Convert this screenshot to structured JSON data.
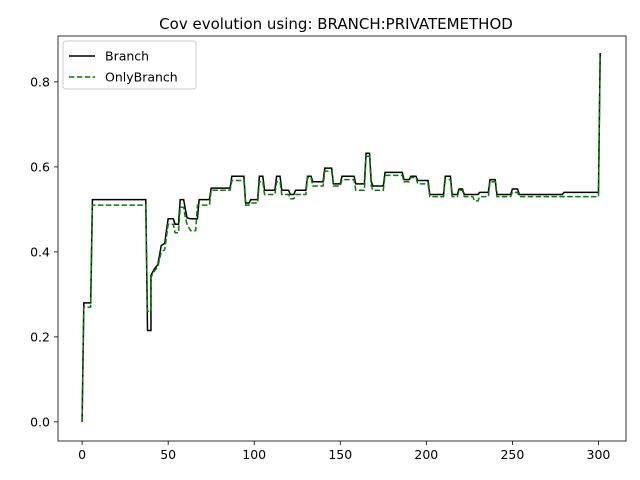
{
  "chart_data": {
    "type": "line",
    "title": "Cov evolution using: BRANCH:PRIVATEMETHOD",
    "xlabel": "",
    "ylabel": "",
    "xlim": [
      -14,
      316
    ],
    "ylim": [
      -0.045,
      0.908
    ],
    "xticks": [
      0,
      50,
      100,
      150,
      200,
      250,
      300
    ],
    "yticks": [
      0.0,
      0.2,
      0.4,
      0.6,
      0.8
    ],
    "ytick_labels": [
      "0.0",
      "0.2",
      "0.4",
      "0.6",
      "0.8"
    ],
    "grid": false,
    "legend_position": "top-left",
    "series": [
      {
        "name": "Branch",
        "color": "#000000",
        "style": "solid",
        "points": [
          [
            0,
            0.0
          ],
          [
            1,
            0.28
          ],
          [
            5,
            0.28
          ],
          [
            6,
            0.523
          ],
          [
            37,
            0.523
          ],
          [
            38,
            0.215
          ],
          [
            40,
            0.215
          ],
          [
            40,
            0.345
          ],
          [
            42,
            0.36
          ],
          [
            44,
            0.37
          ],
          [
            46,
            0.415
          ],
          [
            48,
            0.42
          ],
          [
            49,
            0.45
          ],
          [
            50,
            0.478
          ],
          [
            53,
            0.478
          ],
          [
            54,
            0.465
          ],
          [
            56,
            0.465
          ],
          [
            57,
            0.523
          ],
          [
            59,
            0.523
          ],
          [
            60,
            0.5
          ],
          [
            61,
            0.48
          ],
          [
            63,
            0.478
          ],
          [
            67,
            0.478
          ],
          [
            68,
            0.523
          ],
          [
            74,
            0.523
          ],
          [
            75,
            0.55
          ],
          [
            86,
            0.55
          ],
          [
            87,
            0.578
          ],
          [
            94,
            0.578
          ],
          [
            95,
            0.515
          ],
          [
            97,
            0.515
          ],
          [
            98,
            0.523
          ],
          [
            102,
            0.523
          ],
          [
            103,
            0.578
          ],
          [
            105,
            0.578
          ],
          [
            106,
            0.545
          ],
          [
            112,
            0.545
          ],
          [
            113,
            0.578
          ],
          [
            115,
            0.578
          ],
          [
            116,
            0.545
          ],
          [
            120,
            0.545
          ],
          [
            121,
            0.535
          ],
          [
            123,
            0.535
          ],
          [
            124,
            0.545
          ],
          [
            130,
            0.545
          ],
          [
            131,
            0.578
          ],
          [
            133,
            0.578
          ],
          [
            134,
            0.565
          ],
          [
            140,
            0.565
          ],
          [
            141,
            0.597
          ],
          [
            145,
            0.597
          ],
          [
            146,
            0.56
          ],
          [
            150,
            0.56
          ],
          [
            151,
            0.578
          ],
          [
            158,
            0.578
          ],
          [
            159,
            0.56
          ],
          [
            164,
            0.56
          ],
          [
            165,
            0.632
          ],
          [
            167,
            0.632
          ],
          [
            168,
            0.565
          ],
          [
            169,
            0.555
          ],
          [
            175,
            0.555
          ],
          [
            176,
            0.587
          ],
          [
            186,
            0.587
          ],
          [
            187,
            0.57
          ],
          [
            190,
            0.57
          ],
          [
            191,
            0.578
          ],
          [
            194,
            0.578
          ],
          [
            195,
            0.568
          ],
          [
            201,
            0.568
          ],
          [
            202,
            0.535
          ],
          [
            210,
            0.535
          ],
          [
            211,
            0.578
          ],
          [
            214,
            0.578
          ],
          [
            215,
            0.535
          ],
          [
            218,
            0.535
          ],
          [
            219,
            0.548
          ],
          [
            221,
            0.548
          ],
          [
            222,
            0.535
          ],
          [
            230,
            0.535
          ],
          [
            231,
            0.54
          ],
          [
            236,
            0.54
          ],
          [
            237,
            0.57
          ],
          [
            240,
            0.57
          ],
          [
            241,
            0.535
          ],
          [
            249,
            0.535
          ],
          [
            250,
            0.548
          ],
          [
            253,
            0.548
          ],
          [
            254,
            0.535
          ],
          [
            279,
            0.535
          ],
          [
            280,
            0.54
          ],
          [
            300,
            0.54
          ],
          [
            301,
            0.868
          ]
        ]
      },
      {
        "name": "OnlyBranch",
        "color": "#008000",
        "style": "dashed",
        "points": [
          [
            0,
            0.0
          ],
          [
            1,
            0.27
          ],
          [
            5,
            0.27
          ],
          [
            6,
            0.51
          ],
          [
            37,
            0.51
          ],
          [
            38,
            0.26
          ],
          [
            40,
            0.26
          ],
          [
            40,
            0.34
          ],
          [
            42,
            0.355
          ],
          [
            44,
            0.365
          ],
          [
            46,
            0.4
          ],
          [
            48,
            0.405
          ],
          [
            49,
            0.435
          ],
          [
            50,
            0.465
          ],
          [
            53,
            0.465
          ],
          [
            54,
            0.445
          ],
          [
            56,
            0.445
          ],
          [
            57,
            0.505
          ],
          [
            59,
            0.505
          ],
          [
            60,
            0.48
          ],
          [
            61,
            0.465
          ],
          [
            63,
            0.45
          ],
          [
            66,
            0.45
          ],
          [
            67,
            0.51
          ],
          [
            74,
            0.51
          ],
          [
            75,
            0.545
          ],
          [
            86,
            0.545
          ],
          [
            87,
            0.568
          ],
          [
            94,
            0.568
          ],
          [
            95,
            0.51
          ],
          [
            97,
            0.51
          ],
          [
            98,
            0.515
          ],
          [
            102,
            0.515
          ],
          [
            103,
            0.565
          ],
          [
            105,
            0.565
          ],
          [
            106,
            0.535
          ],
          [
            112,
            0.535
          ],
          [
            113,
            0.565
          ],
          [
            115,
            0.565
          ],
          [
            116,
            0.535
          ],
          [
            120,
            0.535
          ],
          [
            121,
            0.525
          ],
          [
            123,
            0.525
          ],
          [
            124,
            0.535
          ],
          [
            130,
            0.535
          ],
          [
            131,
            0.575
          ],
          [
            133,
            0.575
          ],
          [
            134,
            0.555
          ],
          [
            140,
            0.555
          ],
          [
            141,
            0.59
          ],
          [
            145,
            0.59
          ],
          [
            146,
            0.555
          ],
          [
            150,
            0.555
          ],
          [
            151,
            0.57
          ],
          [
            158,
            0.57
          ],
          [
            159,
            0.545
          ],
          [
            164,
            0.545
          ],
          [
            165,
            0.625
          ],
          [
            167,
            0.625
          ],
          [
            168,
            0.555
          ],
          [
            169,
            0.545
          ],
          [
            175,
            0.545
          ],
          [
            176,
            0.58
          ],
          [
            186,
            0.58
          ],
          [
            187,
            0.565
          ],
          [
            190,
            0.565
          ],
          [
            191,
            0.575
          ],
          [
            194,
            0.575
          ],
          [
            195,
            0.56
          ],
          [
            201,
            0.56
          ],
          [
            202,
            0.53
          ],
          [
            210,
            0.53
          ],
          [
            211,
            0.57
          ],
          [
            214,
            0.57
          ],
          [
            215,
            0.53
          ],
          [
            218,
            0.53
          ],
          [
            219,
            0.545
          ],
          [
            221,
            0.545
          ],
          [
            222,
            0.53
          ],
          [
            227,
            0.53
          ],
          [
            228,
            0.52
          ],
          [
            230,
            0.52
          ],
          [
            231,
            0.53
          ],
          [
            236,
            0.53
          ],
          [
            237,
            0.565
          ],
          [
            240,
            0.565
          ],
          [
            241,
            0.53
          ],
          [
            249,
            0.53
          ],
          [
            250,
            0.54
          ],
          [
            253,
            0.54
          ],
          [
            254,
            0.53
          ],
          [
            300,
            0.53
          ],
          [
            301,
            0.858
          ]
        ]
      }
    ]
  }
}
